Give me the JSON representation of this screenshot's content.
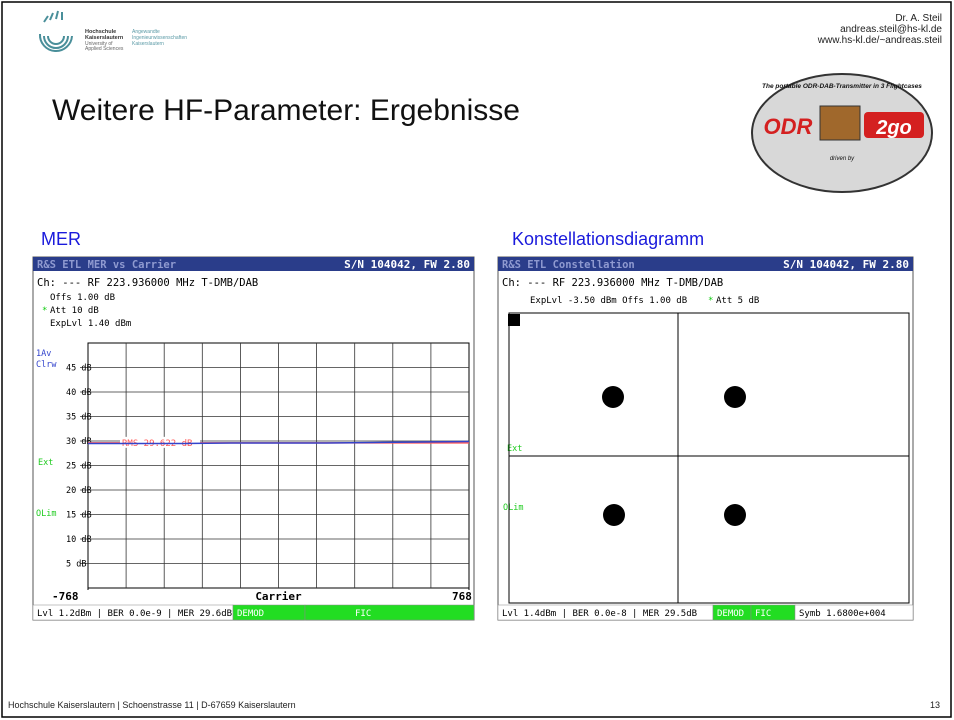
{
  "header": {
    "institution": [
      "Hochschule",
      "Kaiserslautern",
      "University of",
      "Applied Sciences"
    ],
    "department": [
      "Angewandte",
      "Ingenieurwissenschaften",
      "Kaiserslautern"
    ],
    "author": [
      "Dr. A. Steil",
      "andreas.steil@hs-kl.de",
      "www.hs-kl.de/~andreas.steil"
    ],
    "title": "Weitere HF-Parameter: Ergebnisse",
    "badge": {
      "top": "The portable ODR-DAB-Transmitter in 3 Flightcases",
      "left": "ODR",
      "right": "2go",
      "bottom": "driven by"
    }
  },
  "panels": [
    {
      "label": "MER",
      "screen": {
        "title": "R&S ETL MER vs Carrier",
        "serial": "S/N 104042, FW 2.80",
        "info": [
          "Ch: ---  RF 223.936000 MHz  T-DMB/DAB",
          "Offs 1.00 dB",
          "Att  10 dB",
          "ExpLvl 1.40 dBm"
        ],
        "flag": "*",
        "side_labels": [
          "1Av",
          "Clrw",
          "Ext",
          "OLim"
        ],
        "status": [
          "Lvl 1.2dBm | BER 0.0e-9 | MER 29.6dB",
          "DEMOD",
          "FIC"
        ]
      },
      "chart_data": {
        "type": "line",
        "x": [
          -768,
          -576,
          -384,
          -192,
          0,
          192,
          384,
          576,
          768
        ],
        "values": [
          29.5,
          29.5,
          29.5,
          29.6,
          29.6,
          29.6,
          29.7,
          29.8,
          29.9
        ],
        "color": "#3344cc",
        "xlim": [
          -768,
          768
        ],
        "xticks": [
          -768,
          768
        ],
        "xlabel": "Carrier",
        "ylim": [
          0,
          50
        ],
        "yticks": [
          {
            "value": 45,
            "label": "45 dB"
          },
          {
            "value": 40,
            "label": "40 dB"
          },
          {
            "value": 35,
            "label": "35 dB"
          },
          {
            "value": 30,
            "label": "30 dB"
          },
          {
            "value": 25,
            "label": "25 dB"
          },
          {
            "value": 20,
            "label": "20 dB"
          },
          {
            "value": 15,
            "label": "15 dB"
          },
          {
            "value": 10,
            "label": "10 dB"
          },
          {
            "value": 5,
            "label": "5 dB"
          }
        ],
        "grid": true,
        "reference": {
          "value": 29.622,
          "label": "RMS 29.622 dB",
          "color": "#ff5555"
        }
      }
    },
    {
      "label": "Konstellationsdiagramm",
      "screen": {
        "title": "R&S ETL Constellation",
        "serial": "S/N 104042, FW 2.80",
        "info": [
          "Ch: ---  RF 223.936000 MHz  T-DMB/DAB",
          "ExpLvl -3.50 dBm  Offs 1.00 dB",
          "Att 5 dB"
        ],
        "flag": "*",
        "side_labels": [
          "Ext",
          "OLim"
        ],
        "status": [
          "Lvl 1.4dBm | BER 0.0e-8 | MER 29.5dB",
          "DEMOD",
          "FIC",
          "Symb 1.6800e+004"
        ]
      }
    }
  ],
  "footer": {
    "address": "Hochschule Kaiserslautern | Schoenstrasse 11 | D-67659 Kaiserslautern",
    "page": "13"
  }
}
